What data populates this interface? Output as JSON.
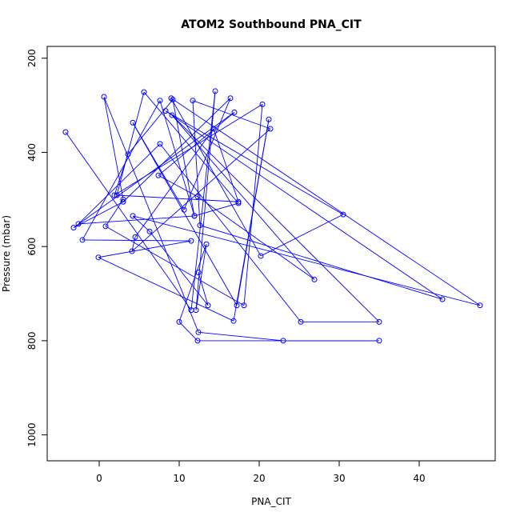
{
  "chart_data": {
    "type": "line",
    "title": "ATOM2 Southbound PNA_CIT",
    "xlabel": "PNA_CIT",
    "ylabel": "Pressure (mbar)",
    "xlim": [
      -6.5,
      49.5
    ],
    "ylim": [
      1055,
      175
    ],
    "y_reversed": true,
    "xticks": [
      0,
      10,
      20,
      30,
      40
    ],
    "yticks": [
      200,
      400,
      600,
      800,
      1000
    ],
    "grid": false,
    "marker": "open-circle",
    "series": [
      {
        "color": "#0000ff",
        "points": [
          [
            -4.2,
            357
          ],
          [
            11.5,
            735
          ],
          [
            14.5,
            270
          ],
          [
            12.1,
            735
          ],
          [
            13.4,
            595
          ],
          [
            10.0,
            760
          ],
          [
            12.3,
            800
          ],
          [
            35,
            800
          ],
          [
            23,
            800
          ],
          [
            12.4,
            782
          ],
          [
            0.6,
            282
          ],
          [
            3.0,
            500
          ],
          [
            0.8,
            557
          ],
          [
            18.1,
            725
          ],
          [
            20.4,
            298
          ],
          [
            1.9,
            491
          ],
          [
            3.6,
            404
          ],
          [
            9.2,
            288
          ],
          [
            11.9,
            535
          ],
          [
            7.6,
            290
          ],
          [
            -2.1,
            586
          ],
          [
            11.5,
            588
          ],
          [
            -0.1,
            623
          ],
          [
            16.8,
            758
          ],
          [
            21.2,
            330
          ],
          [
            17.2,
            725
          ],
          [
            4.2,
            337
          ],
          [
            10.6,
            522
          ],
          [
            16.4,
            285
          ],
          [
            3.0,
            505
          ],
          [
            -3.2,
            560
          ],
          [
            16.9,
            315
          ],
          [
            7.4,
            449
          ],
          [
            12.3,
            494
          ],
          [
            26.9,
            670
          ],
          [
            9.1,
            321
          ],
          [
            35,
            760
          ],
          [
            25.2,
            760
          ],
          [
            7.6,
            382
          ],
          [
            -2.6,
            552
          ],
          [
            11.9,
            535
          ],
          [
            17.4,
            508
          ],
          [
            5.6,
            272
          ],
          [
            2.2,
            491
          ],
          [
            17.4,
            505
          ],
          [
            14.3,
            350
          ],
          [
            4.5,
            580
          ],
          [
            4.1,
            610
          ],
          [
            21.4,
            350
          ],
          [
            11.7,
            290
          ],
          [
            12.6,
            555
          ],
          [
            42.9,
            712
          ],
          [
            8.3,
            312
          ],
          [
            30.5,
            532
          ],
          [
            20.2,
            620
          ],
          [
            9.0,
            285
          ],
          [
            47.6,
            725
          ],
          [
            4.2,
            535
          ],
          [
            6.3,
            568
          ],
          [
            13.6,
            725
          ],
          [
            12.4,
            655
          ]
        ]
      }
    ]
  }
}
